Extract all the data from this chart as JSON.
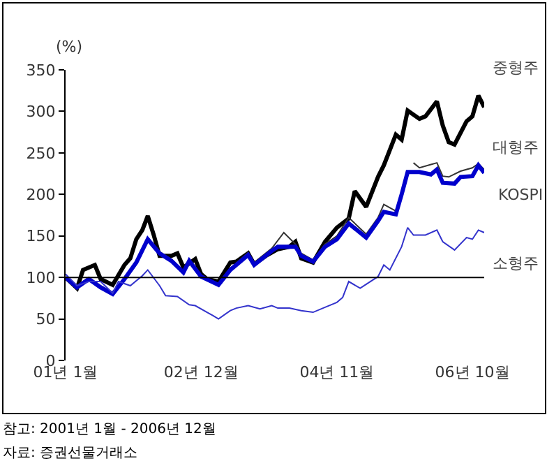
{
  "chart_data": {
    "type": "line",
    "ylabel": "(%)",
    "xlim": [
      "2001-01",
      "2006-12"
    ],
    "xticks": [
      {
        "value": "2001-01",
        "label": "01년 1월"
      },
      {
        "value": "2002-12",
        "label": "02년 12월"
      },
      {
        "value": "2004-11",
        "label": "04년 11월"
      },
      {
        "value": "2006-10",
        "label": "06년 10월"
      }
    ],
    "ylim": [
      0,
      350
    ],
    "yticks": [
      0,
      50,
      100,
      150,
      200,
      250,
      300,
      350
    ],
    "legend": false,
    "marker": "none",
    "line_style": "solid",
    "ref_lines": [
      {
        "axis": "y",
        "value": 100,
        "color": "#000000"
      }
    ],
    "annotations": [
      "참고: 2001년 1월 - 2006년 12월",
      "자료: 증권선물거래소"
    ],
    "series": [
      {
        "name": "중형주",
        "color": "#000000",
        "x": [
          "2001-01",
          "2001-03",
          "2001-04",
          "2001-06",
          "2001-07",
          "2001-09",
          "2001-11",
          "2001-12",
          "2002-01",
          "2002-02",
          "2002-03",
          "2002-04",
          "2002-05",
          "2002-07",
          "2002-08",
          "2002-09",
          "2002-11",
          "2002-12",
          "2003-01",
          "2003-03",
          "2003-05",
          "2003-06",
          "2003-08",
          "2003-09",
          "2003-11",
          "2004-01",
          "2004-03",
          "2004-04",
          "2004-05",
          "2004-07",
          "2004-09",
          "2004-11",
          "2005-01",
          "2005-02",
          "2005-04",
          "2005-06",
          "2005-07",
          "2005-09",
          "2005-10",
          "2005-11",
          "2006-01",
          "2006-02",
          "2006-04",
          "2006-05",
          "2006-06",
          "2006-07",
          "2006-09",
          "2006-10",
          "2006-11",
          "2006-12"
        ],
        "values": [
          100,
          87,
          109,
          115,
          98,
          91,
          115,
          123,
          146,
          157,
          174,
          151,
          126,
          126,
          129,
          112,
          122,
          104,
          98,
          95,
          118,
          119,
          129,
          116,
          126,
          134,
          137,
          143,
          123,
          118,
          143,
          160,
          171,
          204,
          185,
          221,
          235,
          272,
          266,
          301,
          291,
          294,
          312,
          283,
          263,
          260,
          288,
          294,
          319,
          305
        ]
      },
      {
        "name": "대형주",
        "color": "#333333",
        "x": [
          "2001-01",
          "2001-03",
          "2001-05",
          "2001-07",
          "2001-09",
          "2001-11",
          "2002-01",
          "2002-03",
          "2002-05",
          "2002-07",
          "2002-09",
          "2002-10",
          "2002-12",
          "2003-03",
          "2003-05",
          "2003-08",
          "2003-09",
          "2003-12",
          "2004-02",
          "2004-04",
          "2004-05",
          "2004-07",
          "2004-09",
          "2004-11",
          "2005-01",
          "2005-04",
          "2005-06",
          "2005-07",
          "2005-09",
          "2005-10",
          "2005-12",
          "2006-01",
          "2006-03",
          "2006-04",
          "2006-05",
          "2006-06",
          "2006-08",
          "2006-10",
          "2006-11",
          "2006-12"
        ],
        "values": [
          100,
          90,
          100,
          90,
          82,
          100,
          120,
          148,
          131,
          122,
          108,
          122,
          103,
          92,
          111,
          130,
          118,
          135,
          154,
          140,
          129,
          121,
          140,
          150,
          172,
          152,
          172,
          188,
          180,
          null,
          238,
          232,
          236,
          238,
          222,
          221,
          228,
          232,
          237,
          230
        ]
      },
      {
        "name": "KOSPI",
        "color": "#0000cc",
        "x": [
          "2001-01",
          "2001-03",
          "2001-05",
          "2001-07",
          "2001-09",
          "2001-11",
          "2002-01",
          "2002-03",
          "2002-05",
          "2002-07",
          "2002-09",
          "2002-10",
          "2002-12",
          "2003-03",
          "2003-05",
          "2003-08",
          "2003-09",
          "2003-12",
          "2004-01",
          "2004-04",
          "2004-05",
          "2004-07",
          "2004-09",
          "2004-11",
          "2005-01",
          "2005-04",
          "2005-06",
          "2005-07",
          "2005-09",
          "2005-10",
          "2005-11",
          "2006-01",
          "2006-03",
          "2006-04",
          "2006-05",
          "2006-07",
          "2006-08",
          "2006-10",
          "2006-11",
          "2006-12"
        ],
        "values": [
          100,
          88,
          98,
          88,
          80,
          98,
          118,
          146,
          129,
          120,
          106,
          120,
          101,
          91,
          109,
          127,
          115,
          132,
          137,
          137,
          126,
          119,
          137,
          146,
          165,
          148,
          168,
          179,
          176,
          200,
          227,
          227,
          224,
          230,
          214,
          213,
          221,
          222,
          235,
          226
        ]
      },
      {
        "name": "소형주",
        "color": "#3333cc",
        "x": [
          "2001-01",
          "2001-03",
          "2001-05",
          "2001-07",
          "2001-09",
          "2001-10",
          "2001-12",
          "2002-02",
          "2002-03",
          "2002-05",
          "2002-06",
          "2002-08",
          "2002-10",
          "2002-11",
          "2003-01",
          "2003-02",
          "2003-03",
          "2003-05",
          "2003-06",
          "2003-08",
          "2003-10",
          "2003-12",
          "2004-01",
          "2004-03",
          "2004-05",
          "2004-07",
          "2004-09",
          "2004-11",
          "2004-12",
          "2005-01",
          "2005-03",
          "2005-06",
          "2005-07",
          "2005-08",
          "2005-10",
          "2005-11",
          "2005-12",
          "2006-02",
          "2006-04",
          "2006-05",
          "2006-07",
          "2006-09",
          "2006-10",
          "2006-11",
          "2006-12"
        ],
        "values": [
          104,
          90,
          95,
          95,
          81,
          95,
          90,
          102,
          109,
          90,
          78,
          77,
          67,
          66,
          58,
          54,
          50,
          60,
          63,
          66,
          62,
          66,
          63,
          63,
          60,
          58,
          64,
          70,
          76,
          95,
          87,
          101,
          115,
          109,
          137,
          160,
          151,
          151,
          157,
          143,
          133,
          148,
          146,
          157,
          154
        ]
      }
    ]
  }
}
